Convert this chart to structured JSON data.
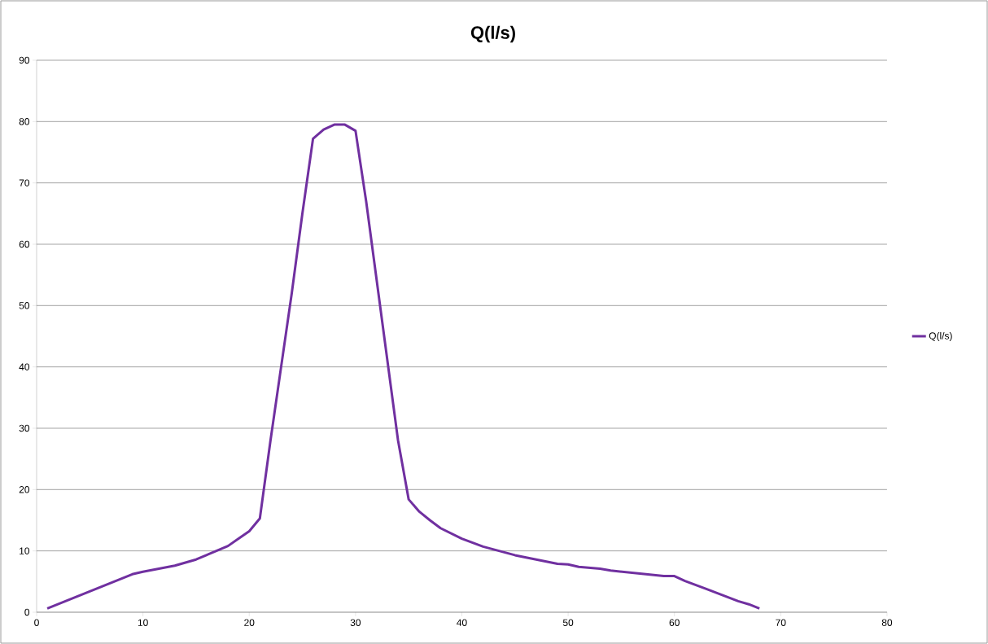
{
  "chart_data": {
    "type": "line",
    "title": "Q(l/s)",
    "series": [
      {
        "name": "Q(l/s)",
        "color": "#7030a0",
        "x": [
          1,
          5,
          9,
          10,
          13,
          15,
          18,
          19,
          20,
          21,
          22,
          23,
          24,
          25,
          26,
          27,
          28,
          29,
          30,
          31,
          32,
          33,
          34,
          35,
          36,
          37,
          38,
          40,
          42,
          45,
          49,
          50,
          51,
          53,
          54,
          59,
          60,
          61,
          63,
          66,
          67,
          68
        ],
        "values": [
          0.6,
          3.4,
          6.2,
          6.6,
          7.6,
          8.6,
          10.8,
          12,
          13.2,
          15.3,
          28,
          40,
          52,
          65,
          77.2,
          78.7,
          79.5,
          79.5,
          78.5,
          67,
          54,
          41,
          28,
          18.4,
          16.4,
          15,
          13.7,
          12,
          10.7,
          9.3,
          7.9,
          7.8,
          7.4,
          7.1,
          6.8,
          5.9,
          5.9,
          5.1,
          3.8,
          1.8,
          1.3,
          0.6
        ]
      }
    ],
    "xlim": [
      0,
      80
    ],
    "xticks": [
      0,
      10,
      20,
      30,
      40,
      50,
      60,
      70,
      80
    ],
    "ylim": [
      0,
      90
    ],
    "yticks": [
      0,
      10,
      20,
      30,
      40,
      50,
      60,
      70,
      80,
      90
    ],
    "grid": "y",
    "legend": "right",
    "marker": "none",
    "line_style": "solid"
  }
}
